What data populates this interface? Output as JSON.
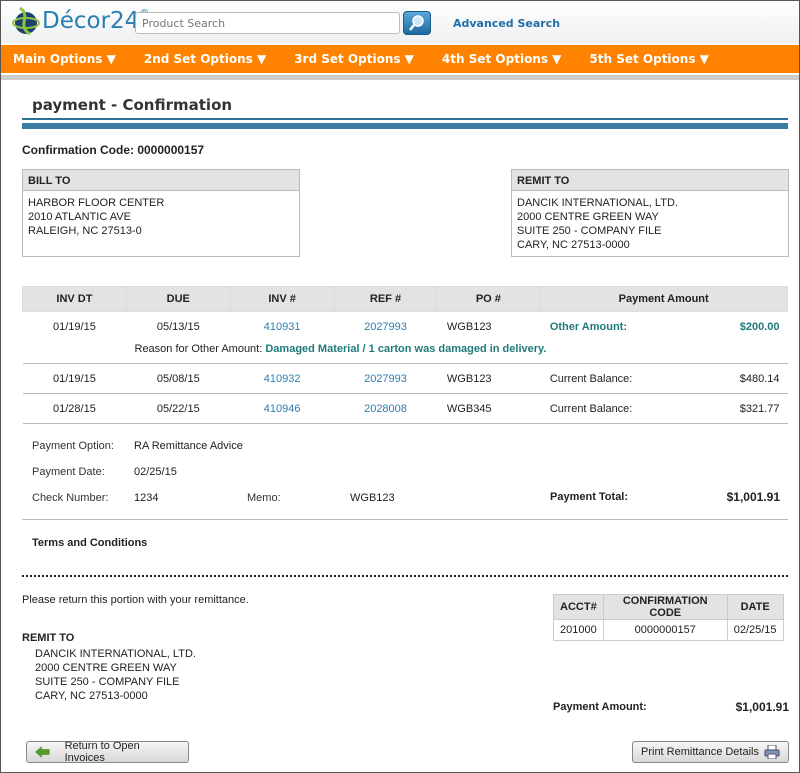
{
  "header": {
    "brand": "Décor24",
    "brand_mark": "®",
    "search_placeholder": "Product Search",
    "advanced_search": "Advanced Search"
  },
  "nav": [
    "Main Options ▼",
    "2nd Set Options ▼",
    "3rd Set Options ▼",
    "4th Set Options ▼",
    "5th Set Options ▼"
  ],
  "page_title": "payment - Confirmation",
  "confirmation": "Confirmation Code: 0000000157",
  "bill_to": {
    "title": "BILL TO",
    "lines": [
      "HARBOR FLOOR CENTER",
      "2010 ATLANTIC AVE",
      "RALEIGH, NC 27513-0"
    ]
  },
  "remit_to": {
    "title": "REMIT TO",
    "lines": [
      "DANCIK INTERNATIONAL, LTD.",
      "2000 CENTRE GREEN WAY",
      "SUITE 250 - COMPANY FILE",
      "CARY, NC 27513-0000"
    ]
  },
  "table": {
    "headers": [
      "INV DT",
      "DUE",
      "INV #",
      "REF #",
      "PO #",
      "Payment Amount"
    ],
    "rows": [
      {
        "inv_dt": "01/19/15",
        "due": "05/13/15",
        "inv": "410931",
        "ref": "2027993",
        "po": "WGB123",
        "label": "Other Amount:",
        "amount": "$200.00"
      },
      {
        "inv_dt": "01/19/15",
        "due": "05/08/15",
        "inv": "410932",
        "ref": "2027993",
        "po": "WGB123",
        "label": "Current Balance:",
        "amount": "$480.14"
      },
      {
        "inv_dt": "01/28/15",
        "due": "05/22/15",
        "inv": "410946",
        "ref": "2028008",
        "po": "WGB345",
        "label": "Current Balance:",
        "amount": "$321.77"
      }
    ],
    "reason_label": "Reason for Other Amount:",
    "reason_value": "Damaged Material / 1 carton was damaged in delivery."
  },
  "details": {
    "payment_option_label": "Payment Option:",
    "payment_option": "RA Remittance Advice",
    "payment_date_label": "Payment Date:",
    "payment_date": "02/25/15",
    "check_label": "Check Number:",
    "check": "1234",
    "memo_label": "Memo:",
    "memo": "WGB123",
    "total_label": "Payment Total:",
    "total": "$1,001.91"
  },
  "terms": "Terms and Conditions",
  "remittance": {
    "note": "Please return this portion with your remittance.",
    "headers": [
      "ACCT#",
      "CONFIRMATION CODE",
      "DATE"
    ],
    "values": [
      "201000",
      "0000000157",
      "02/25/15"
    ],
    "remit_title": "REMIT TO",
    "amount_label": "Payment Amount:",
    "amount": "$1,001.91"
  },
  "buttons": {
    "return": "Return to Open Invoices",
    "print": "Print Remittance Details"
  }
}
